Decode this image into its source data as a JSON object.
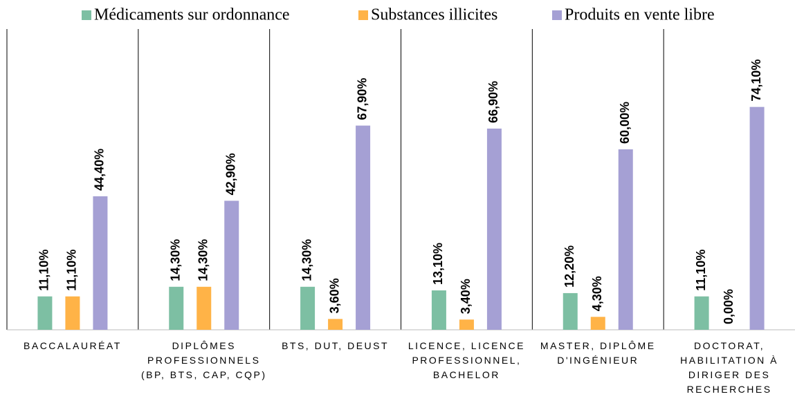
{
  "chart_data": {
    "type": "bar",
    "categories": [
      "BACCALAURÉAT",
      "DIPLÔMES PROFESSIONNELS (BP, BTS, CAP, CQP)",
      "BTS, DUT, DEUST",
      "LICENCE, LICENCE PROFESSIONNEL, BACHELOR",
      "MASTER, DIPLÔME D'INGÉNIEUR",
      "DOCTORAT, HABILITATION À DIRIGER DES RECHERCHES"
    ],
    "series": [
      {
        "name": "Médicaments sur ordonnance",
        "color": "#7dbfa3",
        "values": [
          11.1,
          14.3,
          14.3,
          13.1,
          12.2,
          11.1
        ],
        "value_labels": [
          "11,10%",
          "14,30%",
          "14,30%",
          "13,10%",
          "12,20%",
          "11,10%"
        ]
      },
      {
        "name": "Substances illicites",
        "color": "#ffb347",
        "values": [
          11.1,
          14.3,
          3.6,
          3.4,
          4.3,
          0
        ],
        "value_labels": [
          "11,10%",
          "14,30%",
          "3,60%",
          "3,40%",
          "4,30%",
          "0,00%"
        ]
      },
      {
        "name": "Produits en vente libre",
        "color": "#a5a0d4",
        "values": [
          44.4,
          42.9,
          67.9,
          66.9,
          60,
          74.1
        ],
        "value_labels": [
          "44,40%",
          "42,90%",
          "67,90%",
          "66,90%",
          "60,00%",
          "74,10%"
        ]
      }
    ],
    "ylim": [
      0,
      100
    ],
    "legend": "top"
  }
}
